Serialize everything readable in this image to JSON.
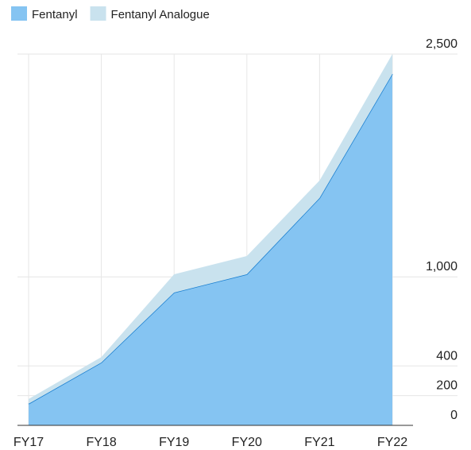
{
  "chart_data": {
    "type": "stacked_area",
    "categories": [
      "FY17",
      "FY18",
      "FY19",
      "FY20",
      "FY21",
      "FY22"
    ],
    "series": [
      {
        "name": "Fentanyl",
        "color": "#85c4f2",
        "line_color": "#1a7fd0",
        "values": [
          145,
          423,
          894,
          1017,
          1531,
          2366
        ]
      },
      {
        "name": "Fentanyl Analogue",
        "color": "#c9e2ee",
        "values": [
          32,
          37,
          123,
          123,
          118,
          134
        ]
      }
    ],
    "ylim": [
      0,
      2500
    ],
    "yticks": [
      0,
      200,
      400,
      {
        "value": 1000,
        "label": "1,000"
      },
      {
        "value": 2500,
        "label": "2,500"
      }
    ],
    "grid": true,
    "legend": "top-left"
  }
}
